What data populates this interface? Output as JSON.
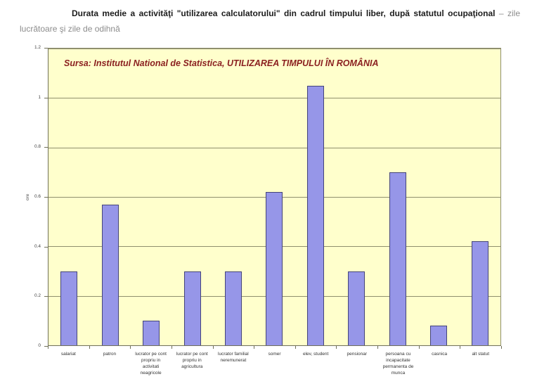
{
  "heading": {
    "bold": "Durata medie a activităţi \"utilizarea calculatorului\" din cadrul timpului liber, după statutul ocupaţional",
    "light": " – zile lucrătoare şi zile de odihnă"
  },
  "chart_data": {
    "type": "bar",
    "title": "Durata medie a activităţi \"utilizarea calculatorului\" din cadrul timpului liber, după statutul ocupaţional – zile lucrătoare şi zile de odihnă",
    "source_note": "Sursa: Institutul National de Statistica, UTILIZAREA TIMPULUI ÎN ROMÂNIA",
    "categories": [
      "salariat",
      "patron",
      "lucrator pe cont propriu in activitati neagricole",
      "lucrator pe cont propriu in agricultura",
      "lucrator familial neremunerat",
      "somer",
      "elev, student",
      "pensionar",
      "persoana cu incapacitate permanenta de munca",
      "casnica",
      "alt statut"
    ],
    "values": [
      0.3,
      0.57,
      0.1,
      0.3,
      0.3,
      0.62,
      1.05,
      0.3,
      0.7,
      0.08,
      0.42
    ],
    "xlabel": "",
    "ylabel": "ore",
    "ylim": [
      0,
      1.2
    ],
    "ytick_labels": [
      "0",
      "0.2",
      "0.4",
      "0.6",
      "0.8",
      "1",
      "1.2"
    ],
    "grid": true,
    "legend": false,
    "colors": {
      "bar_fill": "#9696E8",
      "bar_border": "#44447A",
      "plot_background": "#FFFFCC",
      "gridline": "#8F8F6E",
      "source_note_text": "#8B2020",
      "heading_bold_text": "#1c1c1c",
      "heading_light_text": "#8c8c8c"
    }
  }
}
